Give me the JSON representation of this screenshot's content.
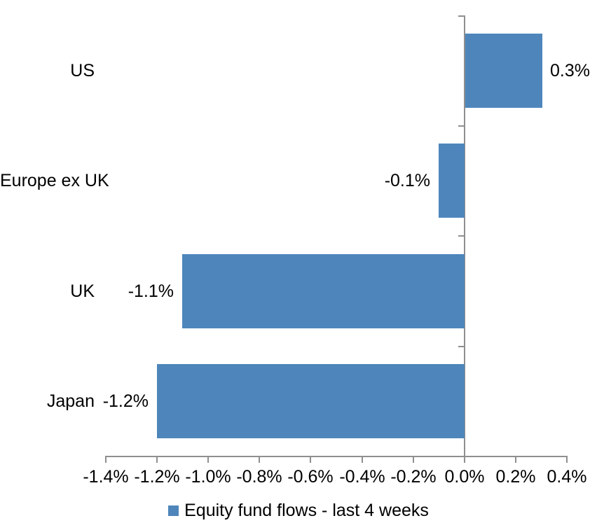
{
  "chart_data": {
    "type": "bar",
    "orientation": "horizontal",
    "title": "",
    "categories": [
      "US",
      "Europe ex UK",
      "UK",
      "Japan"
    ],
    "series": [
      {
        "name": "Equity fund flows - last 4 weeks",
        "values": [
          0.3,
          -0.1,
          -1.1,
          -1.2
        ]
      }
    ],
    "value_labels": [
      "0.3%",
      "-0.1%",
      "-1.1%",
      "-1.2%"
    ],
    "value_unit": "%",
    "xlabel": "",
    "ylabel": "",
    "xlim": [
      -1.4,
      0.4
    ],
    "x_tick_step": 0.2,
    "x_tick_labels": [
      "-1.4%",
      "-1.2%",
      "-1.0%",
      "-0.8%",
      "-0.6%",
      "-0.4%",
      "-0.2%",
      "0.0%",
      "0.2%",
      "0.4%"
    ],
    "grid": false,
    "legend_position": "bottom",
    "legend_label": "Equity fund flows - last 4 weeks",
    "colors": {
      "bar": "#4e86bb",
      "axis": "#8f8f8f",
      "text": "#000000",
      "background": "#ffffff"
    }
  }
}
